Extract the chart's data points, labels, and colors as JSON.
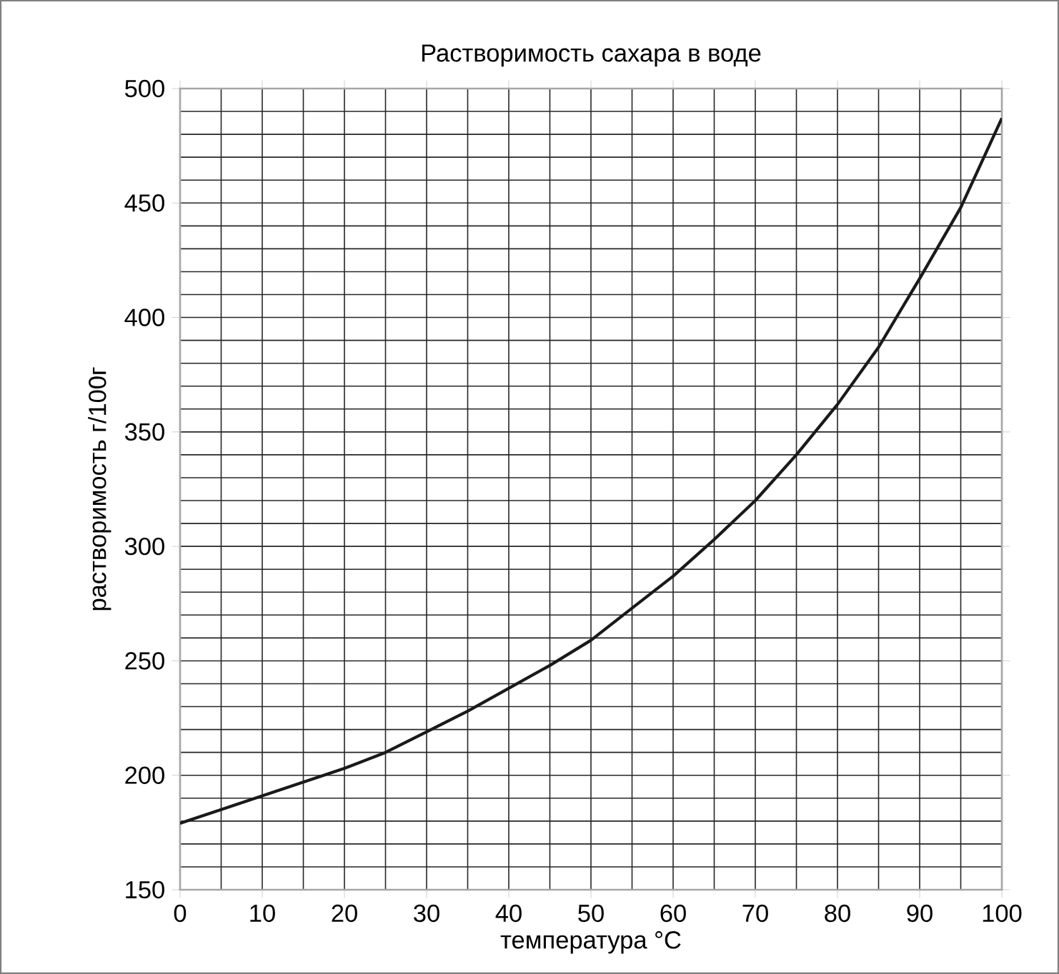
{
  "chart_data": {
    "type": "line",
    "title": "Растворимость сахара в воде",
    "xlabel": "температура °C",
    "ylabel": "растворимость г/100г",
    "x": [
      0,
      5,
      10,
      15,
      20,
      25,
      30,
      35,
      40,
      45,
      50,
      55,
      60,
      65,
      70,
      75,
      80,
      85,
      90,
      95,
      100
    ],
    "series": [
      {
        "color": "#1a1a1a",
        "values": [
          179,
          185,
          191,
          197,
          203,
          210,
          219,
          228,
          238,
          248,
          259,
          273,
          287,
          303,
          320,
          340,
          362,
          387,
          417,
          448,
          487
        ]
      }
    ],
    "xlim": [
      0,
      100
    ],
    "ylim": [
      150,
      500
    ],
    "xticks": [
      0,
      10,
      20,
      30,
      40,
      50,
      60,
      70,
      80,
      90,
      100
    ],
    "yticks": [
      150,
      200,
      250,
      300,
      350,
      400,
      450,
      500
    ],
    "grid": true,
    "marker": "none",
    "line_style": "solid"
  }
}
